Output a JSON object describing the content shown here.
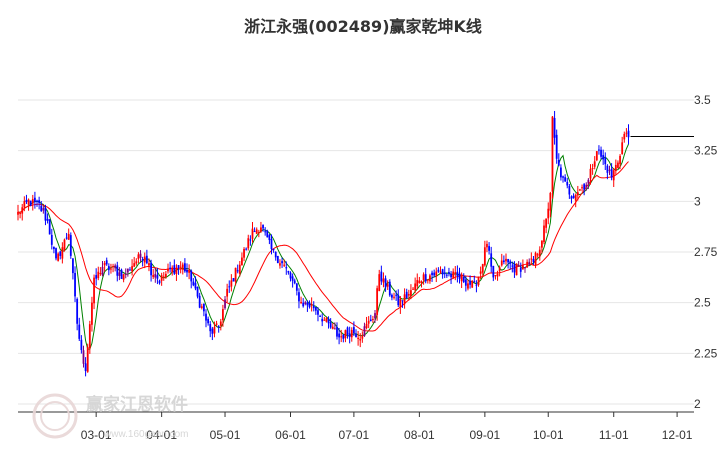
{
  "chart_data": {
    "type": "candlestick",
    "title": "浙江永强(002489)赢家乾坤K线",
    "y_ticks": [
      "3.5",
      "3.25",
      "3",
      "2.75",
      "2.5",
      "2.25",
      "2"
    ],
    "y_tick_values": [
      3.5,
      3.25,
      3.0,
      2.75,
      2.5,
      2.25,
      2.0
    ],
    "ylim": [
      2.0,
      3.55
    ],
    "x_ticks": [
      "03-01",
      "04-01",
      "05-01",
      "06-01",
      "07-01",
      "08-01",
      "09-01",
      "10-01",
      "11-01",
      "12-01"
    ],
    "x_tick_days": [
      37,
      68,
      98,
      129,
      159,
      190,
      221,
      251,
      282,
      312
    ],
    "x_day_range": [
      0,
      320
    ],
    "gridlines": "horizontal",
    "last_close": 3.32,
    "colors": {
      "up": "#ff0000",
      "down": "#0000ff",
      "special": "#800080",
      "ma_short": "#008000",
      "ma_long": "#ff0000",
      "grid": "#e6e6e6",
      "reference": "#000000"
    },
    "anchors": [
      [
        0,
        2.94
      ],
      [
        5,
        3.0
      ],
      [
        10,
        2.98
      ],
      [
        14,
        2.9
      ],
      [
        18,
        2.7
      ],
      [
        24,
        2.85
      ],
      [
        28,
        2.4
      ],
      [
        30,
        2.25
      ],
      [
        32,
        2.18
      ],
      [
        34,
        2.4
      ],
      [
        36,
        2.6
      ],
      [
        40,
        2.68
      ],
      [
        46,
        2.66
      ],
      [
        50,
        2.63
      ],
      [
        55,
        2.7
      ],
      [
        60,
        2.74
      ],
      [
        63,
        2.66
      ],
      [
        67,
        2.61
      ],
      [
        72,
        2.66
      ],
      [
        78,
        2.68
      ],
      [
        82,
        2.62
      ],
      [
        84,
        2.55
      ],
      [
        88,
        2.45
      ],
      [
        91,
        2.35
      ],
      [
        95,
        2.38
      ],
      [
        99,
        2.55
      ],
      [
        105,
        2.7
      ],
      [
        111,
        2.85
      ],
      [
        115,
        2.88
      ],
      [
        120,
        2.76
      ],
      [
        126,
        2.68
      ],
      [
        130,
        2.6
      ],
      [
        134,
        2.5
      ],
      [
        140,
        2.48
      ],
      [
        146,
        2.4
      ],
      [
        152,
        2.33
      ],
      [
        158,
        2.36
      ],
      [
        162,
        2.34
      ],
      [
        166,
        2.4
      ],
      [
        169,
        2.45
      ],
      [
        171,
        2.65
      ],
      [
        173,
        2.6
      ],
      [
        176,
        2.55
      ],
      [
        180,
        2.5
      ],
      [
        186,
        2.55
      ],
      [
        190,
        2.62
      ],
      [
        200,
        2.65
      ],
      [
        210,
        2.62
      ],
      [
        216,
        2.58
      ],
      [
        219,
        2.66
      ],
      [
        222,
        2.8
      ],
      [
        225,
        2.6
      ],
      [
        230,
        2.71
      ],
      [
        235,
        2.67
      ],
      [
        240,
        2.68
      ],
      [
        244,
        2.7
      ],
      [
        247,
        2.78
      ],
      [
        250,
        2.9
      ],
      [
        252,
        3.05
      ],
      [
        253,
        3.4
      ],
      [
        255,
        3.2
      ],
      [
        258,
        3.1
      ],
      [
        262,
        3.03
      ],
      [
        266,
        3.06
      ],
      [
        270,
        3.1
      ],
      [
        274,
        3.26
      ],
      [
        278,
        3.18
      ],
      [
        281,
        3.12
      ],
      [
        284,
        3.2
      ],
      [
        287,
        3.33
      ],
      [
        289,
        3.32
      ]
    ]
  },
  "watermark": {
    "brand": "赢家江恩软件",
    "url": "www.160gann.com"
  }
}
